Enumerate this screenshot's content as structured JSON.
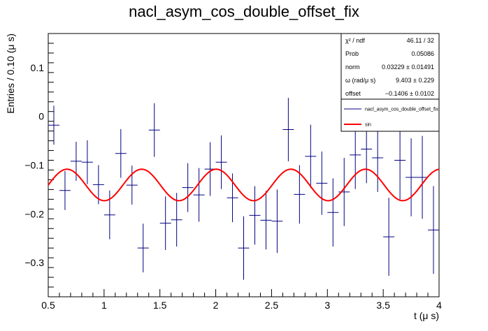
{
  "chart_data": {
    "type": "scatter",
    "title": "nacl_asym_cos_double_offset_fix",
    "xlabel": "t (μ s)",
    "ylabel": "Entries / 0.10 (μ s)",
    "xlim": [
      0.5,
      4.0
    ],
    "ylim": [
      -0.37,
      0.17
    ],
    "x_ticks": [
      "0.5",
      "1",
      "1.5",
      "2",
      "2.5",
      "3",
      "3.5",
      "4"
    ],
    "y_ticks": [
      "−0.3",
      "−0.2",
      "−0.1",
      "0",
      "0.1"
    ],
    "grid": false,
    "series": [
      {
        "name": "nacl_asym_cos_double_offset_fix",
        "color": "#000080",
        "points": [
          {
            "x": 0.55,
            "y": -0.018,
            "err": 0.04
          },
          {
            "x": 0.65,
            "y": -0.152,
            "err": 0.04
          },
          {
            "x": 0.75,
            "y": -0.092,
            "err": 0.04
          },
          {
            "x": 0.85,
            "y": -0.094,
            "err": 0.045
          },
          {
            "x": 0.95,
            "y": -0.14,
            "err": 0.04
          },
          {
            "x": 1.05,
            "y": -0.202,
            "err": 0.05
          },
          {
            "x": 1.15,
            "y": -0.076,
            "err": 0.05
          },
          {
            "x": 1.25,
            "y": -0.141,
            "err": 0.04
          },
          {
            "x": 1.35,
            "y": -0.27,
            "err": 0.05
          },
          {
            "x": 1.45,
            "y": -0.028,
            "err": 0.055
          },
          {
            "x": 1.55,
            "y": -0.219,
            "err": 0.055
          },
          {
            "x": 1.65,
            "y": -0.212,
            "err": 0.055
          },
          {
            "x": 1.75,
            "y": -0.146,
            "err": 0.05
          },
          {
            "x": 1.85,
            "y": -0.161,
            "err": 0.055
          },
          {
            "x": 1.95,
            "y": -0.108,
            "err": 0.055
          },
          {
            "x": 2.05,
            "y": -0.094,
            "err": 0.055
          },
          {
            "x": 2.15,
            "y": -0.167,
            "err": 0.05
          },
          {
            "x": 2.25,
            "y": -0.27,
            "err": 0.065
          },
          {
            "x": 2.35,
            "y": -0.203,
            "err": 0.06
          },
          {
            "x": 2.45,
            "y": -0.213,
            "err": 0.06
          },
          {
            "x": 2.55,
            "y": -0.215,
            "err": 0.065
          },
          {
            "x": 2.65,
            "y": -0.027,
            "err": 0.065
          },
          {
            "x": 2.75,
            "y": -0.16,
            "err": 0.06
          },
          {
            "x": 2.85,
            "y": -0.082,
            "err": 0.065
          },
          {
            "x": 2.95,
            "y": -0.137,
            "err": 0.065
          },
          {
            "x": 3.05,
            "y": -0.197,
            "err": 0.07
          },
          {
            "x": 3.15,
            "y": -0.155,
            "err": 0.07
          },
          {
            "x": 3.25,
            "y": -0.079,
            "err": 0.07
          },
          {
            "x": 3.35,
            "y": -0.067,
            "err": 0.07
          },
          {
            "x": 3.45,
            "y": -0.085,
            "err": 0.07
          },
          {
            "x": 3.55,
            "y": -0.247,
            "err": 0.08
          },
          {
            "x": 3.65,
            "y": -0.09,
            "err": 0.08
          },
          {
            "x": 3.75,
            "y": -0.125,
            "err": 0.08
          },
          {
            "x": 3.85,
            "y": -0.125,
            "err": 0.085
          },
          {
            "x": 3.95,
            "y": -0.233,
            "err": 0.09
          }
        ]
      },
      {
        "name": "sin",
        "color": "#ff0000",
        "function": {
          "norm": 0.03229,
          "omega": 9.403,
          "offset": -0.1406,
          "x_start": 0.5,
          "x_end": 4.0
        }
      }
    ],
    "stats": [
      {
        "label": "χ² / ndf",
        "value": "46.11 / 32"
      },
      {
        "label": "Prob",
        "value": "0.05086"
      },
      {
        "label": "norm",
        "value": "0.03229 ± 0.01491"
      },
      {
        "label": "ω (rad/μ s)",
        "value": "9.403 ± 0.229"
      },
      {
        "label": "offset",
        "value": "−0.1406 ± 0.0102"
      }
    ],
    "legend": {
      "placement": "top-right",
      "entries": [
        {
          "label": "nacl_asym_cos_double_offset_fix",
          "color": "#000080"
        },
        {
          "label": "sin",
          "color": "#ff0000"
        }
      ]
    }
  }
}
